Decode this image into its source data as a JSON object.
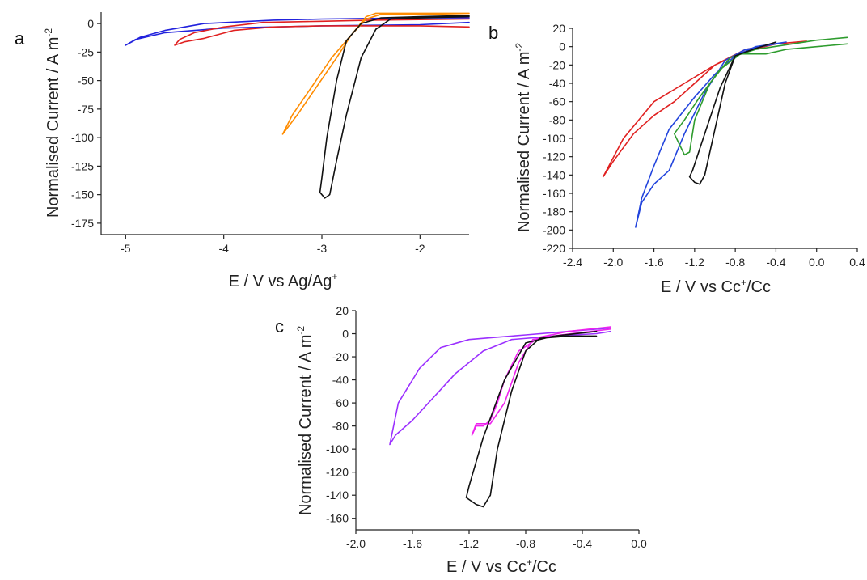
{
  "chart_data": [
    {
      "panel": "a",
      "type": "line",
      "xlabel": "E / V vs Ag/Ag",
      "xlabel_sup": "+",
      "ylabel": "Normalised Current / A m",
      "ylabel_sup": "-2",
      "xlim": [
        -5.25,
        -1.5
      ],
      "ylim": [
        -185,
        10
      ],
      "xticks": [
        "-5",
        "-4",
        "-3",
        "-2"
      ],
      "xtick_values": [
        -5,
        -4,
        -3,
        -2
      ],
      "yticks": [
        "0",
        "-25",
        "-50",
        "-75",
        "-100",
        "-125",
        "-150",
        "-175"
      ],
      "ytick_values": [
        0,
        -25,
        -50,
        -75,
        -100,
        -125,
        -150,
        -175
      ],
      "series": [
        {
          "color": "#2222dd",
          "points": [
            [
              -1.5,
              1
            ],
            [
              -2.0,
              -1
            ],
            [
              -3.0,
              -2
            ],
            [
              -4.0,
              -4
            ],
            [
              -4.6,
              -8
            ],
            [
              -4.9,
              -14
            ],
            [
              -5.0,
              -19
            ],
            [
              -4.85,
              -12
            ],
            [
              -4.6,
              -6
            ],
            [
              -4.2,
              0
            ],
            [
              -3.5,
              3
            ],
            [
              -3.0,
              4
            ],
            [
              -2.0,
              5
            ],
            [
              -1.5,
              5
            ]
          ]
        },
        {
          "color": "#e02020",
          "points": [
            [
              -1.5,
              -3
            ],
            [
              -2.0,
              -2
            ],
            [
              -2.5,
              -2
            ],
            [
              -3.0,
              -2
            ],
            [
              -3.5,
              -3
            ],
            [
              -3.9,
              -6
            ],
            [
              -4.2,
              -13
            ],
            [
              -4.4,
              -16
            ],
            [
              -4.5,
              -19
            ],
            [
              -4.45,
              -14
            ],
            [
              -4.3,
              -8
            ],
            [
              -4.0,
              -3
            ],
            [
              -3.6,
              1
            ],
            [
              -3.0,
              2
            ],
            [
              -2.5,
              3
            ],
            [
              -1.5,
              4
            ]
          ]
        },
        {
          "color": "#ff8c00",
          "points": [
            [
              -1.5,
              9
            ],
            [
              -2.0,
              8
            ],
            [
              -2.4,
              8
            ],
            [
              -2.55,
              4
            ],
            [
              -2.7,
              -10
            ],
            [
              -2.85,
              -30
            ],
            [
              -3.05,
              -55
            ],
            [
              -3.25,
              -80
            ],
            [
              -3.4,
              -97
            ],
            [
              -3.3,
              -80
            ],
            [
              -3.1,
              -55
            ],
            [
              -2.9,
              -30
            ],
            [
              -2.7,
              -10
            ],
            [
              -2.55,
              6
            ],
            [
              -2.45,
              9
            ],
            [
              -2.0,
              9
            ],
            [
              -1.5,
              9
            ]
          ]
        },
        {
          "color": "#111111",
          "points": [
            [
              -1.5,
              6
            ],
            [
              -2.0,
              5
            ],
            [
              -2.3,
              4
            ],
            [
              -2.45,
              -5
            ],
            [
              -2.6,
              -30
            ],
            [
              -2.75,
              -80
            ],
            [
              -2.85,
              -120
            ],
            [
              -2.92,
              -150
            ],
            [
              -2.97,
              -153
            ],
            [
              -3.02,
              -148
            ],
            [
              -3.0,
              -135
            ],
            [
              -2.95,
              -100
            ],
            [
              -2.85,
              -50
            ],
            [
              -2.75,
              -15
            ],
            [
              -2.6,
              0
            ],
            [
              -2.4,
              5
            ],
            [
              -2.0,
              6
            ],
            [
              -1.5,
              7
            ]
          ]
        }
      ]
    },
    {
      "panel": "b",
      "type": "line",
      "xlabel": "E / V vs Cc",
      "xlabel_sup": "+",
      "xlabel_tail": "/Cc",
      "ylabel": "Normalised Current / A m",
      "ylabel_sup": "-2",
      "xlim": [
        -2.4,
        0.4
      ],
      "ylim": [
        -220,
        20
      ],
      "xticks": [
        "-2.4",
        "-2.0",
        "-1.6",
        "-1.2",
        "-0.8",
        "-0.4",
        "0.0",
        "0.4"
      ],
      "xtick_values": [
        -2.4,
        -2.0,
        -1.6,
        -1.2,
        -0.8,
        -0.4,
        0.0,
        0.4
      ],
      "yticks": [
        "20",
        "0",
        "-20",
        "-40",
        "-60",
        "-80",
        "-100",
        "-120",
        "-140",
        "-160",
        "-180",
        "-200",
        "-220"
      ],
      "ytick_values": [
        20,
        0,
        -20,
        -40,
        -60,
        -80,
        -100,
        -120,
        -140,
        -160,
        -180,
        -200,
        -220
      ],
      "series": [
        {
          "color": "#e02020",
          "points": [
            [
              -0.1,
              6
            ],
            [
              -0.4,
              3
            ],
            [
              -0.7,
              -5
            ],
            [
              -1.0,
              -20
            ],
            [
              -1.3,
              -40
            ],
            [
              -1.6,
              -60
            ],
            [
              -1.9,
              -100
            ],
            [
              -2.1,
              -142
            ],
            [
              -2.0,
              -125
            ],
            [
              -1.8,
              -95
            ],
            [
              -1.6,
              -75
            ],
            [
              -1.4,
              -60
            ],
            [
              -1.2,
              -40
            ],
            [
              -1.0,
              -20
            ],
            [
              -0.7,
              -3
            ],
            [
              -0.4,
              3
            ],
            [
              -0.1,
              6
            ]
          ]
        },
        {
          "color": "#2244dd",
          "points": [
            [
              -0.3,
              5
            ],
            [
              -0.6,
              0
            ],
            [
              -0.8,
              -10
            ],
            [
              -1.0,
              -30
            ],
            [
              -1.2,
              -55
            ],
            [
              -1.45,
              -90
            ],
            [
              -1.6,
              -130
            ],
            [
              -1.72,
              -165
            ],
            [
              -1.78,
              -197
            ],
            [
              -1.72,
              -170
            ],
            [
              -1.6,
              -150
            ],
            [
              -1.45,
              -135
            ],
            [
              -1.3,
              -95
            ],
            [
              -1.1,
              -50
            ],
            [
              -0.9,
              -15
            ],
            [
              -0.7,
              -3
            ],
            [
              -0.3,
              5
            ]
          ]
        },
        {
          "color": "#2e9c2e",
          "points": [
            [
              0.3,
              10
            ],
            [
              0.0,
              7
            ],
            [
              -0.3,
              2
            ],
            [
              -0.6,
              -3
            ],
            [
              -0.85,
              -12
            ],
            [
              -1.05,
              -40
            ],
            [
              -1.2,
              -80
            ],
            [
              -1.25,
              -115
            ],
            [
              -1.3,
              -118
            ],
            [
              -1.4,
              -95
            ],
            [
              -1.3,
              -80
            ],
            [
              -1.15,
              -55
            ],
            [
              -0.95,
              -25
            ],
            [
              -0.75,
              -8
            ],
            [
              -0.5,
              -8
            ],
            [
              -0.3,
              -3
            ],
            [
              0.0,
              0
            ],
            [
              0.3,
              3
            ]
          ]
        },
        {
          "color": "#111111",
          "points": [
            [
              -0.4,
              5
            ],
            [
              -0.6,
              -2
            ],
            [
              -0.8,
              -10
            ],
            [
              -0.9,
              -40
            ],
            [
              -1.0,
              -90
            ],
            [
              -1.1,
              -140
            ],
            [
              -1.15,
              -150
            ],
            [
              -1.2,
              -148
            ],
            [
              -1.25,
              -142
            ],
            [
              -1.22,
              -135
            ],
            [
              -1.1,
              -95
            ],
            [
              -0.95,
              -45
            ],
            [
              -0.8,
              -10
            ],
            [
              -0.6,
              -2
            ],
            [
              -0.4,
              5
            ]
          ]
        }
      ]
    },
    {
      "panel": "c",
      "type": "line",
      "xlabel": "E / V vs Cc",
      "xlabel_sup": "+",
      "xlabel_tail": "/Cc",
      "ylabel": "Normalised Current / A m",
      "ylabel_sup": "-2",
      "xlim": [
        -2.0,
        0.0
      ],
      "ylim": [
        -170,
        20
      ],
      "xticks": [
        "-2.0",
        "-1.6",
        "-1.2",
        "-0.8",
        "-0.4",
        "0.0"
      ],
      "xtick_values": [
        -2.0,
        -1.6,
        -1.2,
        -0.8,
        -0.4,
        0.0
      ],
      "yticks": [
        "20",
        "0",
        "-20",
        "-40",
        "-60",
        "-80",
        "-100",
        "-120",
        "-140",
        "-160"
      ],
      "ytick_values": [
        20,
        0,
        -20,
        -40,
        -60,
        -80,
        -100,
        -120,
        -140,
        -160
      ],
      "series": [
        {
          "color": "#9b30ff",
          "points": [
            [
              -0.2,
              5
            ],
            [
              -0.5,
              2
            ],
            [
              -0.8,
              -1
            ],
            [
              -1.0,
              -3
            ],
            [
              -1.2,
              -5
            ],
            [
              -1.4,
              -12
            ],
            [
              -1.55,
              -30
            ],
            [
              -1.65,
              -50
            ],
            [
              -1.7,
              -60
            ],
            [
              -1.76,
              -96
            ],
            [
              -1.72,
              -88
            ],
            [
              -1.6,
              -75
            ],
            [
              -1.45,
              -55
            ],
            [
              -1.3,
              -35
            ],
            [
              -1.1,
              -15
            ],
            [
              -0.9,
              -5
            ],
            [
              -0.6,
              -2
            ],
            [
              -0.3,
              0
            ],
            [
              -0.2,
              2
            ]
          ]
        },
        {
          "color": "#ee22ee",
          "points": [
            [
              -0.2,
              6
            ],
            [
              -0.5,
              2
            ],
            [
              -0.7,
              -3
            ],
            [
              -0.85,
              -15
            ],
            [
              -0.95,
              -40
            ],
            [
              -1.0,
              -60
            ],
            [
              -1.05,
              -75
            ],
            [
              -1.1,
              -80
            ],
            [
              -1.15,
              -80
            ],
            [
              -1.18,
              -88
            ],
            [
              -1.15,
              -78
            ],
            [
              -1.05,
              -78
            ],
            [
              -0.95,
              -60
            ],
            [
              -0.85,
              -25
            ],
            [
              -0.75,
              -5
            ],
            [
              -0.55,
              -1
            ],
            [
              -0.2,
              4
            ]
          ]
        },
        {
          "color": "#111111",
          "points": [
            [
              -0.3,
              -2
            ],
            [
              -0.5,
              -2
            ],
            [
              -0.7,
              -4
            ],
            [
              -0.8,
              -15
            ],
            [
              -0.9,
              -50
            ],
            [
              -1.0,
              -100
            ],
            [
              -1.05,
              -140
            ],
            [
              -1.1,
              -150
            ],
            [
              -1.15,
              -148
            ],
            [
              -1.22,
              -142
            ],
            [
              -1.2,
              -132
            ],
            [
              -1.1,
              -90
            ],
            [
              -0.95,
              -40
            ],
            [
              -0.8,
              -8
            ],
            [
              -0.6,
              -2
            ],
            [
              -0.3,
              2
            ]
          ]
        }
      ]
    }
  ]
}
